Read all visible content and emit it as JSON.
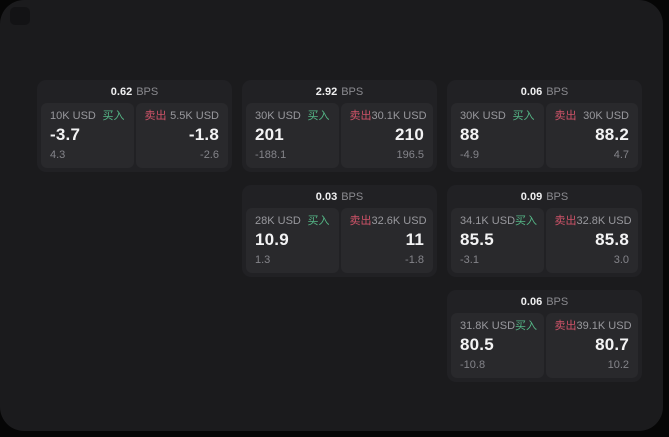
{
  "labels": {
    "bps_unit": "BPS",
    "buy": "买入",
    "sell": "卖出"
  },
  "colors": {
    "buy": "#55b787",
    "sell": "#cf5368"
  },
  "cards": [
    {
      "bps": "0.62",
      "col": 1,
      "row": 1,
      "buy": {
        "amount": "10K USD",
        "price": "-3.7",
        "delta": "4.3"
      },
      "sell": {
        "amount": "5.5K USD",
        "price": "-1.8",
        "delta": "-2.6"
      }
    },
    {
      "bps": "2.92",
      "col": 2,
      "row": 1,
      "buy": {
        "amount": "30K USD",
        "price": "201",
        "delta": "-188.1"
      },
      "sell": {
        "amount": "30.1K USD",
        "price": "210",
        "delta": "196.5"
      }
    },
    {
      "bps": "0.06",
      "col": 3,
      "row": 1,
      "buy": {
        "amount": "30K USD",
        "price": "88",
        "delta": "-4.9"
      },
      "sell": {
        "amount": "30K USD",
        "price": "88.2",
        "delta": "4.7"
      }
    },
    {
      "bps": "0.03",
      "col": 2,
      "row": 2,
      "buy": {
        "amount": "28K USD",
        "price": "10.9",
        "delta": "1.3"
      },
      "sell": {
        "amount": "32.6K USD",
        "price": "11",
        "delta": "-1.8"
      }
    },
    {
      "bps": "0.09",
      "col": 3,
      "row": 2,
      "buy": {
        "amount": "34.1K USD",
        "price": "85.5",
        "delta": "-3.1"
      },
      "sell": {
        "amount": "32.8K USD",
        "price": "85.8",
        "delta": "3.0"
      }
    },
    {
      "bps": "0.06",
      "col": 3,
      "row": 3,
      "buy": {
        "amount": "31.8K USD",
        "price": "80.5",
        "delta": "-10.8"
      },
      "sell": {
        "amount": "39.1K USD",
        "price": "80.7",
        "delta": "10.2"
      }
    }
  ]
}
